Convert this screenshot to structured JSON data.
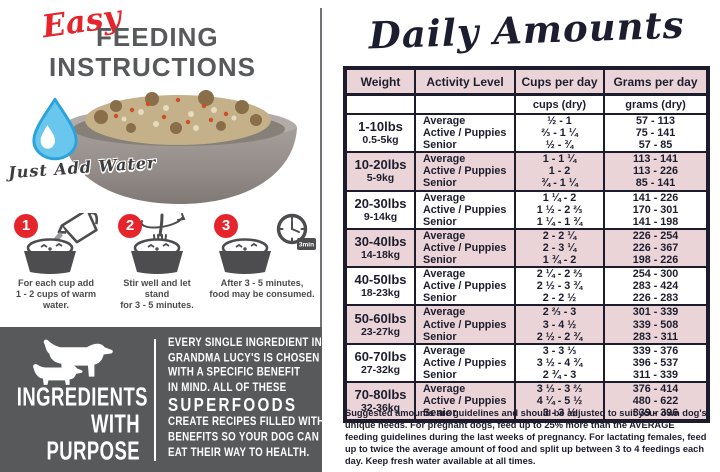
{
  "colors": {
    "accent_red": "#e5242b",
    "heading_gray": "#58595b",
    "panel_gray": "#58595b",
    "table_pink": "#ead4d8",
    "table_border_navy": "#1c1c2c",
    "water_blue": "#69c6ec",
    "water_blue_dark": "#2aa3db"
  },
  "left": {
    "title_script": "Easy",
    "title_line1": "FEEDING",
    "title_line2": "INSTRUCTIONS",
    "just_add_water": "Just Add Water",
    "clock_badge": "3min",
    "steps": [
      {
        "number": "1",
        "icon": "pitcher-pour-icon",
        "caption_line1": "For each cup add",
        "caption_line2": "1 - 2 cups of warm water."
      },
      {
        "number": "2",
        "icon": "fork-stir-icon",
        "caption_line1": "Stir well and let stand",
        "caption_line2": "for 3 - 5 minutes."
      },
      {
        "number": "3",
        "icon": "clock-timer-icon",
        "caption_line1": "After 3 - 5 minutes,",
        "caption_line2": "food may be consumed."
      }
    ],
    "ingredients_panel": {
      "heading_lines": [
        "INGREDIENTS",
        "WITH",
        "PURPOSE"
      ],
      "body_lines": [
        "EVERY SINGLE INGREDIENT IN",
        "GRANDMA LUCY'S IS CHOSEN",
        "WITH A SPECIFIC BENEFIT",
        "IN MIND. ALL OF THESE",
        "SUPERFOODS",
        "CREATE RECIPES FILLED WITH",
        "BENEFITS SO YOUR DOG CAN",
        "EAT THEIR WAY TO HEALTH."
      ]
    }
  },
  "right": {
    "title": "Daily Amounts",
    "footnote": "Suggested amounts are guidelines and should be adjusted to suit your own dog's unique needs. For pregnant dogs, feed up to 25% more than the AVERAGE feeding guidelines during the last weeks of pregnancy. For lactating females, feed up to twice the average amount of food and split up between 3 to 4 feedings each day. Keep fresh water available at all times."
  },
  "table": {
    "headers": [
      "Weight",
      "Activity Level",
      "Cups per day",
      "Grams per day"
    ],
    "subheaders": [
      "",
      "",
      "cups (dry)",
      "grams (dry)"
    ],
    "activity_levels": [
      "Average",
      "Active / Puppies",
      "Senior"
    ],
    "groups": [
      {
        "lbs": "1-10lbs",
        "kg": "0.5-5kg",
        "cups": [
          "½ - 1",
          "⅔ - 1 ¼",
          "½ - ¾"
        ],
        "grams": [
          "57 - 113",
          "75 - 141",
          "57 - 85"
        ]
      },
      {
        "lbs": "10-20lbs",
        "kg": "5-9kg",
        "cups": [
          "1 - 1 ¼",
          "1 - 2",
          "¾ - 1 ¼"
        ],
        "grams": [
          "113 - 141",
          "113 - 226",
          "85 - 141"
        ]
      },
      {
        "lbs": "20-30lbs",
        "kg": "9-14kg",
        "cups": [
          "1 ¼ - 2",
          "1 ½ - 2 ⅔",
          "1 ¼ - 1 ¾"
        ],
        "grams": [
          "141 - 226",
          "170 - 301",
          "141 - 198"
        ]
      },
      {
        "lbs": "30-40lbs",
        "kg": "14-18kg",
        "cups": [
          "2 - 2 ¼",
          "2 - 3 ¼",
          "1 ¾ - 2"
        ],
        "grams": [
          "226 - 254",
          "226 - 367",
          "198 - 226"
        ]
      },
      {
        "lbs": "40-50lbs",
        "kg": "18-23kg",
        "cups": [
          "2 ¼ - 2 ⅔",
          "2 ½ - 3 ¾",
          "2 - 2 ½"
        ],
        "grams": [
          "254 - 300",
          "283 - 424",
          "226 - 283"
        ]
      },
      {
        "lbs": "50-60lbs",
        "kg": "23-27kg",
        "cups": [
          "2 ⅔ - 3",
          "3 - 4 ½",
          "2 ½ - 2 ¾"
        ],
        "grams": [
          "301 - 339",
          "339 - 508",
          "283 - 311"
        ]
      },
      {
        "lbs": "60-70lbs",
        "kg": "27-32kg",
        "cups": [
          "3 - 3 ⅓",
          "3 ½ - 4 ¾",
          "2 ¾ - 3"
        ],
        "grams": [
          "339 - 376",
          "396 - 537",
          "311 - 339"
        ]
      },
      {
        "lbs": "70-80lbs",
        "kg": "32-36kg",
        "cups": [
          "3 ⅓ - 3 ⅔",
          "4 ¼ - 5 ½",
          "3 - 3 ½"
        ],
        "grams": [
          "376 - 414",
          "480 - 622",
          "339 - 396"
        ]
      }
    ]
  }
}
